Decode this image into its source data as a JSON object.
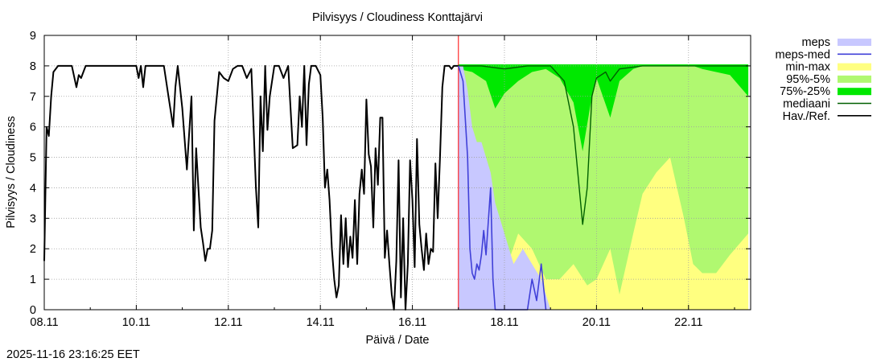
{
  "chart_data": {
    "type": "area",
    "title": "Pilvisyys / Cloudiness Konttajärvi",
    "xlabel": "Päivä / Date",
    "ylabel": "Pilvisyys / Cloudiness",
    "timestamp": "2025-11-16 23:16:25 EET",
    "x_unit": "days since 08.11 00:00",
    "xlim": [
      0,
      15.35
    ],
    "ylim": [
      0,
      9
    ],
    "grid": true,
    "forecast_start_day": 9.0,
    "x_tick_labels": [
      "08.11",
      "10.11",
      "12.11",
      "14.11",
      "16.11",
      "18.11",
      "20.11",
      "22.11"
    ],
    "x_tick_days": [
      0,
      2,
      4,
      6,
      8,
      10,
      12,
      14
    ],
    "y_ticks": [
      0,
      1,
      2,
      3,
      4,
      5,
      6,
      7,
      8,
      9
    ],
    "legend": [
      {
        "label": "meps",
        "color": "#c8c8ff",
        "style": "fill"
      },
      {
        "label": "meps-med",
        "color": "#4040d8",
        "style": "line"
      },
      {
        "label": "min-max",
        "color": "#ffff80",
        "style": "fill"
      },
      {
        "label": "95%-5%",
        "color": "#b0f870",
        "style": "fill"
      },
      {
        "label": "75%-25%",
        "color": "#00e800",
        "style": "fill"
      },
      {
        "label": "mediaani",
        "color": "#006000",
        "style": "line"
      },
      {
        "label": "Hav./Ref.",
        "color": "#000000",
        "style": "line"
      }
    ],
    "legend_position": "right",
    "series": [
      {
        "name": "Hav./Ref.",
        "x": [
          0,
          0.05,
          0.1,
          0.15,
          0.2,
          0.3,
          0.4,
          0.6,
          0.7,
          0.75,
          0.8,
          0.9,
          1.0,
          1.2,
          1.4,
          1.6,
          1.8,
          2.0,
          2.05,
          2.1,
          2.15,
          2.2,
          2.3,
          2.4,
          2.6,
          2.7,
          2.8,
          2.85,
          2.9,
          3.0,
          3.1,
          3.2,
          3.25,
          3.3,
          3.35,
          3.4,
          3.45,
          3.5,
          3.55,
          3.6,
          3.65,
          3.7,
          3.8,
          3.9,
          4.0,
          4.1,
          4.2,
          4.3,
          4.4,
          4.5,
          4.6,
          4.65,
          4.7,
          4.75,
          4.8,
          4.85,
          4.9,
          5.0,
          5.1,
          5.2,
          5.3,
          5.4,
          5.5,
          5.55,
          5.6,
          5.65,
          5.7,
          5.75,
          5.8,
          5.9,
          6.0,
          6.05,
          6.1,
          6.15,
          6.2,
          6.25,
          6.3,
          6.35,
          6.4,
          6.45,
          6.5,
          6.55,
          6.6,
          6.65,
          6.7,
          6.75,
          6.8,
          6.85,
          6.9,
          6.95,
          7.0,
          7.05,
          7.1,
          7.15,
          7.2,
          7.25,
          7.3,
          7.35,
          7.4,
          7.45,
          7.5,
          7.55,
          7.6,
          7.65,
          7.7,
          7.75,
          7.8,
          7.85,
          7.9,
          7.95,
          8.0,
          8.05,
          8.1,
          8.15,
          8.2,
          8.25,
          8.3,
          8.35,
          8.4,
          8.45,
          8.5,
          8.55,
          8.6,
          8.65,
          8.7,
          8.75,
          8.8,
          8.85,
          8.9,
          8.95,
          9.0
        ],
        "values": [
          1.6,
          6.0,
          5.7,
          7.0,
          7.8,
          8.0,
          8.0,
          8.0,
          7.3,
          7.7,
          7.6,
          8.0,
          8.0,
          8.0,
          8.0,
          8.0,
          8.0,
          8.0,
          7.6,
          8.0,
          7.3,
          8.0,
          8.0,
          8.0,
          8.0,
          7.0,
          6.0,
          7.3,
          8.0,
          6.6,
          4.6,
          7.0,
          2.6,
          5.3,
          4.0,
          2.7,
          2.2,
          1.6,
          2.0,
          2.0,
          2.6,
          6.2,
          7.8,
          7.6,
          7.5,
          7.9,
          8.0,
          8.0,
          7.6,
          7.9,
          4.0,
          2.7,
          7.0,
          5.2,
          8.0,
          5.9,
          7.0,
          8.0,
          8.0,
          7.6,
          8.0,
          5.3,
          5.4,
          7.0,
          6.0,
          8.0,
          5.4,
          7.4,
          8.0,
          8.0,
          7.7,
          6.3,
          4.0,
          4.6,
          3.6,
          2.0,
          1.0,
          0.4,
          0.8,
          3.1,
          1.5,
          3.0,
          1.4,
          2.4,
          1.7,
          3.6,
          1.5,
          3.8,
          4.6,
          3.8,
          6.9,
          5.1,
          4.7,
          2.7,
          5.3,
          4.1,
          6.3,
          6.3,
          1.7,
          2.6,
          1.5,
          0.5,
          0.0,
          1.6,
          4.9,
          0.4,
          3.0,
          0.0,
          1.5,
          4.9,
          3.6,
          1.4,
          5.6,
          2.8,
          2.0,
          1.3,
          2.5,
          1.5,
          2.0,
          1.9,
          4.8,
          3.0,
          5.0,
          7.3,
          8.0,
          8.0,
          8.0,
          7.9,
          8.0,
          8.0,
          8.0
        ]
      },
      {
        "name": "mediaani",
        "x": [
          9.0,
          9.5,
          10.0,
          10.5,
          11.0,
          11.3,
          11.5,
          11.7,
          11.8,
          11.9,
          12.0,
          12.2,
          12.3,
          12.5,
          13.0,
          13.5,
          14.0,
          15.3
        ],
        "values": [
          8.0,
          8.0,
          7.9,
          8.0,
          8.0,
          7.5,
          6.0,
          2.8,
          4.0,
          7.0,
          7.6,
          7.8,
          7.5,
          7.9,
          8.0,
          8.0,
          8.0,
          8.0
        ]
      },
      {
        "name": "meps-med",
        "x": [
          9.0,
          9.1,
          9.2,
          9.25,
          9.3,
          9.35,
          9.4,
          9.45,
          9.5,
          9.55,
          9.6,
          9.7,
          9.75,
          9.8,
          10.5,
          10.6,
          10.7,
          10.8,
          10.9
        ],
        "values": [
          8.0,
          7.5,
          5.0,
          2.0,
          1.2,
          1.0,
          1.5,
          1.3,
          1.8,
          2.6,
          1.8,
          4.0,
          1.0,
          0.0,
          0.0,
          1.0,
          0.3,
          1.5,
          0.0
        ]
      }
    ],
    "bands": [
      {
        "name": "min-max",
        "x": [
          9.0,
          9.3,
          9.6,
          9.8,
          10.0,
          10.3,
          10.6,
          10.9,
          11.2,
          11.5,
          11.8,
          12.0,
          12.3,
          12.5,
          12.8,
          13.0,
          13.3,
          13.6,
          13.9,
          14.1,
          14.3,
          14.6,
          14.9,
          15.3
        ],
        "low": [
          0,
          0,
          0,
          0,
          0,
          0,
          0,
          0,
          0,
          0,
          0,
          0,
          0,
          0,
          0,
          0,
          0,
          0,
          0,
          0,
          0,
          0,
          0,
          0
        ],
        "high": [
          8,
          8,
          8,
          8,
          8,
          8,
          8,
          8,
          8,
          8,
          8,
          8,
          8,
          8,
          8,
          8,
          8,
          8,
          8,
          8,
          8,
          8,
          8,
          8
        ]
      },
      {
        "name": "95%-5%",
        "x": [
          9.0,
          9.3,
          9.6,
          9.8,
          10.0,
          10.3,
          10.6,
          10.9,
          11.2,
          11.5,
          11.8,
          12.0,
          12.3,
          12.5,
          12.8,
          13.0,
          13.3,
          13.6,
          13.9,
          14.1,
          14.3,
          14.6,
          14.9,
          15.3
        ],
        "low": [
          6.5,
          4.5,
          3.0,
          2.0,
          1.2,
          2.5,
          2.0,
          1.0,
          1.0,
          1.5,
          0.8,
          1.0,
          2.0,
          0.5,
          2.5,
          3.8,
          4.5,
          5.0,
          3.0,
          1.5,
          1.2,
          1.2,
          1.8,
          2.5
        ],
        "high": [
          8,
          8,
          8,
          8,
          8,
          8,
          8,
          8,
          8,
          8,
          8,
          8,
          8,
          8,
          8,
          8,
          8,
          8,
          8,
          8,
          8,
          8,
          8,
          8
        ]
      },
      {
        "name": "75%-25%",
        "x": [
          9.0,
          9.3,
          9.6,
          9.8,
          10.0,
          10.3,
          10.6,
          10.9,
          11.2,
          11.5,
          11.7,
          11.9,
          12.0,
          12.3,
          12.5,
          12.8,
          13.0,
          13.3,
          13.6,
          13.9,
          14.1,
          14.3,
          14.6,
          14.9,
          15.3
        ],
        "low": [
          7.9,
          7.8,
          7.5,
          6.6,
          7.1,
          7.5,
          7.8,
          7.9,
          7.6,
          6.8,
          5.2,
          7.0,
          7.6,
          6.3,
          7.5,
          7.9,
          8.0,
          8.0,
          8.0,
          8.0,
          8.0,
          7.9,
          7.8,
          7.7,
          7.0
        ],
        "high": [
          8.05,
          8.05,
          8.05,
          8.05,
          8.05,
          8.05,
          8.05,
          8.05,
          8.05,
          8.05,
          8.05,
          8.05,
          8.05,
          8.05,
          8.05,
          8.05,
          8.05,
          8.05,
          8.05,
          8.05,
          8.05,
          8.05,
          8.05,
          8.05,
          8.05
        ]
      },
      {
        "name": "meps",
        "x": [
          9.0,
          9.1,
          9.2,
          9.3,
          9.4,
          9.5,
          9.6,
          9.7,
          9.8,
          10.0,
          10.2,
          10.4,
          10.6,
          10.8,
          11.0
        ],
        "low": [
          0,
          0,
          0,
          0,
          0,
          0,
          0,
          0,
          0,
          0,
          0,
          0,
          0,
          0,
          0
        ],
        "high": [
          8.0,
          8.0,
          7.2,
          6.0,
          5.5,
          5.5,
          5.0,
          4.5,
          3.5,
          2.5,
          1.5,
          2.0,
          1.5,
          1.0,
          0.0
        ]
      }
    ]
  }
}
